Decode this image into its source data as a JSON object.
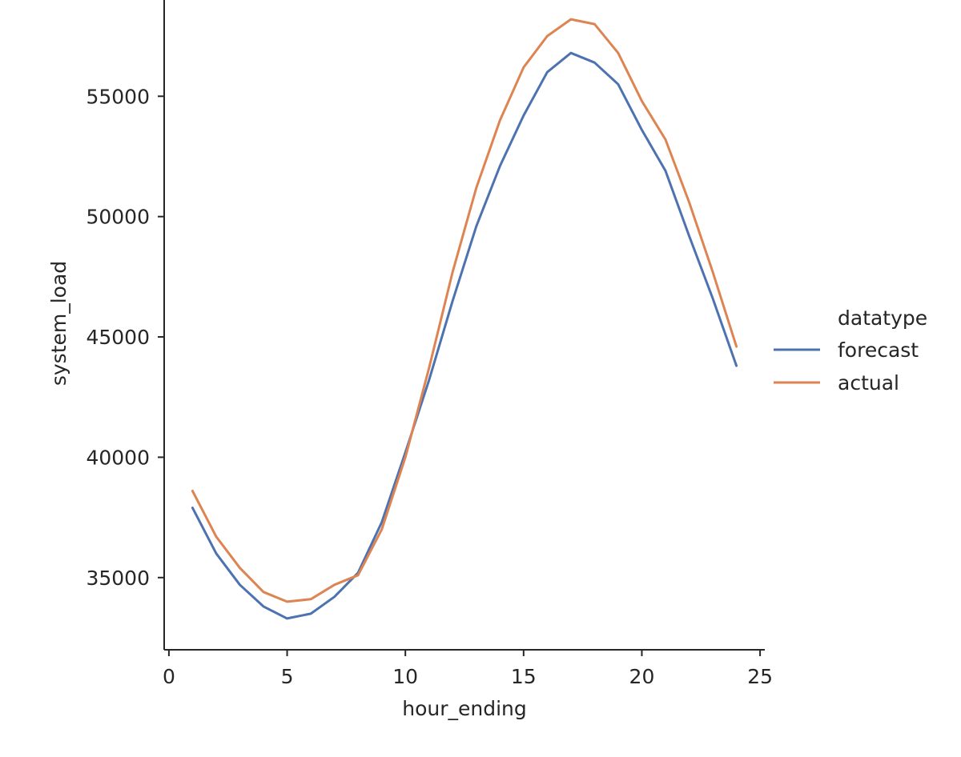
{
  "chart_data": {
    "type": "line",
    "title": "",
    "xlabel": "hour_ending",
    "ylabel": "system_load",
    "xlim": [
      -0.2,
      25.2
    ],
    "ylim": [
      32000,
      59000
    ],
    "xticks": [
      0,
      5,
      10,
      15,
      20,
      25
    ],
    "yticks": [
      35000,
      40000,
      45000,
      50000,
      55000
    ],
    "grid": false,
    "legend": {
      "title": "datatype",
      "placement": "outside-right"
    },
    "x": [
      1,
      2,
      3,
      4,
      5,
      6,
      7,
      8,
      9,
      10,
      11,
      12,
      13,
      14,
      15,
      16,
      17,
      18,
      19,
      20,
      21,
      22,
      23,
      24
    ],
    "series": [
      {
        "name": "forecast",
        "color": "#4c72b0",
        "values": [
          37900,
          36000,
          34700,
          33800,
          33300,
          33500,
          34200,
          35200,
          37300,
          40200,
          43200,
          46500,
          49600,
          52100,
          54200,
          56000,
          56800,
          56400,
          55500,
          53600,
          51900,
          49200,
          46600,
          43800
        ]
      },
      {
        "name": "actual",
        "color": "#dd8452",
        "values": [
          38600,
          36700,
          35400,
          34400,
          34000,
          34100,
          34700,
          35100,
          37000,
          40000,
          43700,
          47700,
          51200,
          54000,
          56200,
          57500,
          58200,
          58000,
          56800,
          54800,
          53200,
          50600,
          47700,
          44600
        ]
      }
    ]
  }
}
